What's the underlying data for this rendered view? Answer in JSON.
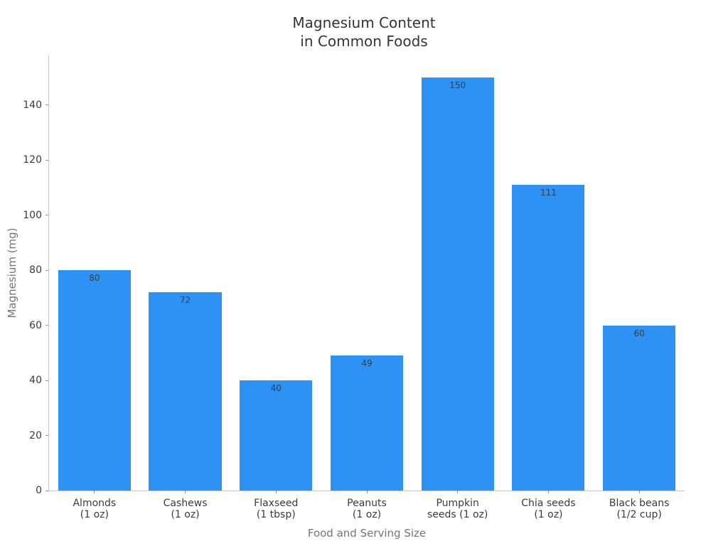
{
  "chart_data": {
    "type": "bar",
    "title_lines": [
      "Magnesium Content",
      "in Common Foods"
    ],
    "title": "Magnesium Content in Common Foods",
    "categories": [
      [
        "Almonds",
        "(1 oz)"
      ],
      [
        "Cashews",
        "(1 oz)"
      ],
      [
        "Flaxseed",
        "(1 tbsp)"
      ],
      [
        "Peanuts",
        "(1 oz)"
      ],
      [
        "Pumpkin",
        "seeds (1 oz)"
      ],
      [
        "Chia seeds",
        "(1 oz)"
      ],
      [
        "Black beans",
        "(1/2 cup)"
      ]
    ],
    "values": [
      80,
      72,
      40,
      49,
      150,
      111,
      60
    ],
    "value_labels": [
      "80",
      "72",
      "40",
      "49",
      "150",
      "111",
      "60"
    ],
    "xlabel": "Food and Serving Size",
    "ylabel": "Magnesium (mg)",
    "yticks": [
      0,
      20,
      40,
      60,
      80,
      100,
      120,
      140
    ],
    "ylim": [
      0,
      158
    ],
    "grid": false,
    "legend_position": "none",
    "bar_color": "#2e92f5",
    "value_label_color": "#3d3d3d",
    "tick_label_color": "#3b3b3b",
    "axis_label_color": "#757575",
    "title_color": "#343434",
    "spine_color": "#c9c9c9",
    "background_color": "#ffffff"
  }
}
